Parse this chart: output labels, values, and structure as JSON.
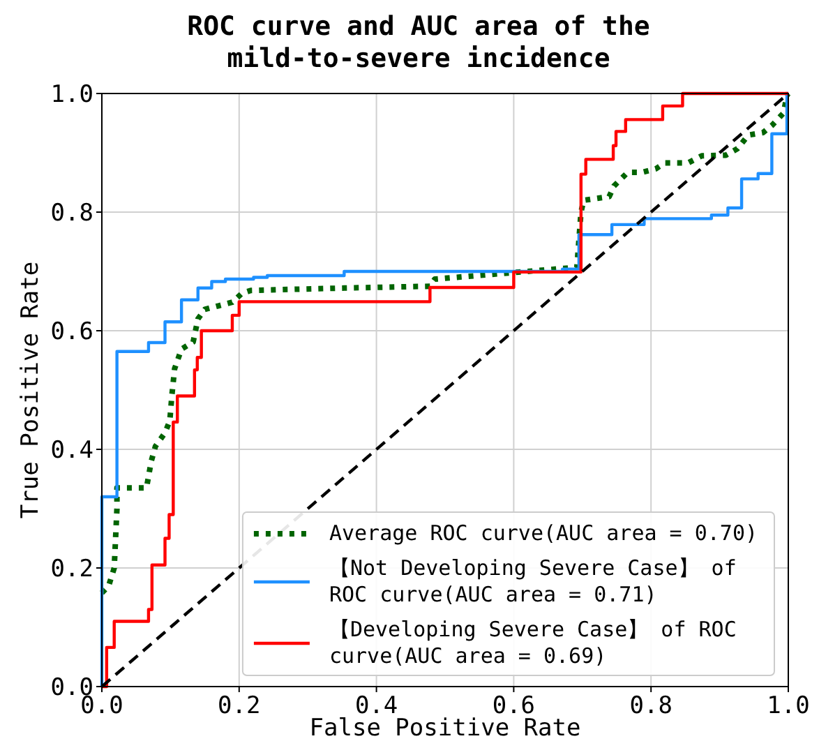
{
  "chart_data": {
    "type": "line",
    "title": "ROC curve and AUC area of the mild-to-severe incidence",
    "xlabel": "False Positive Rate",
    "ylabel": "True Positive Rate",
    "xlim": [
      0,
      1
    ],
    "ylim": [
      0,
      1
    ],
    "xticks": [
      {
        "value": 0,
        "label": "0.0"
      },
      {
        "value": 0.2,
        "label": "0.2"
      },
      {
        "value": 0.4,
        "label": "0.4"
      },
      {
        "value": 0.6,
        "label": "0.6"
      },
      {
        "value": 0.8,
        "label": "0.8"
      },
      {
        "value": 1,
        "label": "1.0"
      }
    ],
    "yticks": [
      {
        "value": 0,
        "label": "0.0"
      },
      {
        "value": 0.2,
        "label": "0.2"
      },
      {
        "value": 0.4,
        "label": "0.4"
      },
      {
        "value": 0.6,
        "label": "0.6"
      },
      {
        "value": 0.8,
        "label": "0.8"
      },
      {
        "value": 1,
        "label": "1.0"
      }
    ],
    "grid": true,
    "legend": "bottom right",
    "series": [
      {
        "name": "Average ROC curve(AUC area = 0.70)",
        "color": "#006400",
        "line_style": "dotted",
        "x": [
          0,
          0.01,
          0.018,
          0.022,
          0.022,
          0.065,
          0.072,
          0.078,
          0.092,
          0.099,
          0.102,
          0.106,
          0.116,
          0.133,
          0.14,
          0.15,
          0.17,
          0.19,
          0.204,
          0.217,
          0.353,
          0.478,
          0.485,
          0.692,
          0.698,
          0.702,
          0.739,
          0.746,
          0.766,
          0.787,
          0.807,
          0.82,
          0.854,
          0.874,
          0.909,
          0.926,
          0.942,
          0.963,
          0.976,
          0.993,
          0.998,
          1
        ],
        "values": [
          0.158,
          0.17,
          0.2,
          0.3,
          0.335,
          0.335,
          0.38,
          0.405,
          0.428,
          0.448,
          0.491,
          0.536,
          0.569,
          0.581,
          0.62,
          0.636,
          0.642,
          0.648,
          0.663,
          0.668,
          0.672,
          0.675,
          0.687,
          0.707,
          0.8,
          0.82,
          0.826,
          0.844,
          0.867,
          0.867,
          0.873,
          0.883,
          0.883,
          0.895,
          0.896,
          0.907,
          0.93,
          0.934,
          0.946,
          0.967,
          0.997,
          1
        ]
      },
      {
        "name": "【Not Developing Severe Case】 of ROC curve(AUC area = 0.71)",
        "color": "#1e90ff",
        "line_style": "solid",
        "x": [
          0,
          0,
          0.022,
          0.022,
          0.068,
          0.068,
          0.092,
          0.092,
          0.116,
          0.116,
          0.14,
          0.14,
          0.16,
          0.16,
          0.18,
          0.18,
          0.221,
          0.221,
          0.241,
          0.241,
          0.353,
          0.353,
          0.671,
          0.671,
          0.695,
          0.695,
          0.743,
          0.743,
          0.79,
          0.79,
          0.888,
          0.888,
          0.912,
          0.912,
          0.932,
          0.932,
          0.956,
          0.956,
          0.976,
          0.976,
          0.998,
          0.998,
          1
        ],
        "values": [
          0,
          0.32,
          0.32,
          0.565,
          0.565,
          0.58,
          0.58,
          0.615,
          0.615,
          0.652,
          0.652,
          0.672,
          0.672,
          0.683,
          0.683,
          0.687,
          0.687,
          0.69,
          0.69,
          0.693,
          0.693,
          0.7,
          0.7,
          0.704,
          0.704,
          0.762,
          0.762,
          0.779,
          0.779,
          0.789,
          0.789,
          0.795,
          0.795,
          0.807,
          0.807,
          0.856,
          0.856,
          0.865,
          0.865,
          0.932,
          0.932,
          1,
          1
        ]
      },
      {
        "name": "【Developing Severe Case】 of ROC curve(AUC area = 0.69)",
        "color": "#ff0000",
        "line_style": "solid",
        "x": [
          0,
          0.007,
          0.007,
          0.018,
          0.018,
          0.068,
          0.068,
          0.073,
          0.073,
          0.092,
          0.092,
          0.098,
          0.098,
          0.104,
          0.104,
          0.11,
          0.11,
          0.135,
          0.135,
          0.139,
          0.139,
          0.145,
          0.145,
          0.19,
          0.19,
          0.2,
          0.2,
          0.478,
          0.478,
          0.6,
          0.6,
          0.698,
          0.698,
          0.705,
          0.705,
          0.745,
          0.745,
          0.749,
          0.749,
          0.763,
          0.763,
          0.817,
          0.817,
          0.846,
          0.846,
          1
        ],
        "values": [
          0,
          0,
          0.066,
          0.066,
          0.11,
          0.11,
          0.13,
          0.13,
          0.205,
          0.205,
          0.25,
          0.25,
          0.29,
          0.29,
          0.446,
          0.446,
          0.49,
          0.49,
          0.534,
          0.534,
          0.555,
          0.555,
          0.6,
          0.6,
          0.626,
          0.626,
          0.649,
          0.649,
          0.673,
          0.673,
          0.699,
          0.699,
          0.864,
          0.864,
          0.889,
          0.889,
          0.912,
          0.912,
          0.936,
          0.936,
          0.956,
          0.956,
          0.979,
          0.979,
          1,
          1
        ]
      },
      {
        "color": "#000000",
        "line_style": "dashed",
        "x": [
          0,
          1
        ],
        "values": [
          0,
          1
        ]
      }
    ]
  }
}
